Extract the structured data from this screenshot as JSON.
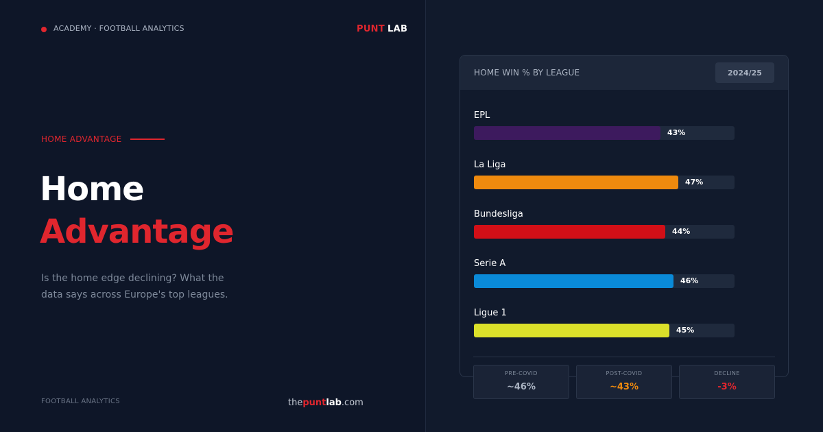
{
  "header": {
    "tag": "ACADEMY · FOOTBALL ANALYTICS",
    "logo_primary": "PUNT",
    "logo_secondary": "LAB"
  },
  "hero": {
    "section_label": "HOME ADVANTAGE",
    "title_line1": "Home",
    "title_line2": "Advantage",
    "subtitle": "Is the home edge declining? What the data says across Europe's top leagues."
  },
  "footer": {
    "left_text": "FOOTBALL ANALYTICS",
    "url_prefix": "the",
    "url_brand_red": "punt",
    "url_brand_white": "lab",
    "url_suffix": ".com"
  },
  "card": {
    "title": "HOME WIN % BY LEAGUE",
    "season": "2024/25"
  },
  "chart_data": {
    "type": "bar",
    "title": "HOME WIN % BY LEAGUE",
    "categories": [
      "EPL",
      "La Liga",
      "Bundesliga",
      "Serie A",
      "Ligue 1"
    ],
    "values": [
      43,
      47,
      44,
      46,
      45
    ],
    "value_labels": [
      "43%",
      "47%",
      "44%",
      "46%",
      "45%"
    ],
    "colors": [
      "#3d1a5e",
      "#ef8a0e",
      "#d20f17",
      "#0a8ad8",
      "#dce12a"
    ],
    "orientation": "horizontal",
    "xlim": [
      0,
      60
    ]
  },
  "stats": [
    {
      "label": "PRE-COVID",
      "value": "~46%",
      "color": "#aab3c2"
    },
    {
      "label": "POST-COVID",
      "value": "~43%",
      "color": "#ef8a0e"
    },
    {
      "label": "DECLINE",
      "value": "-3%",
      "color": "#e0262e"
    }
  ]
}
